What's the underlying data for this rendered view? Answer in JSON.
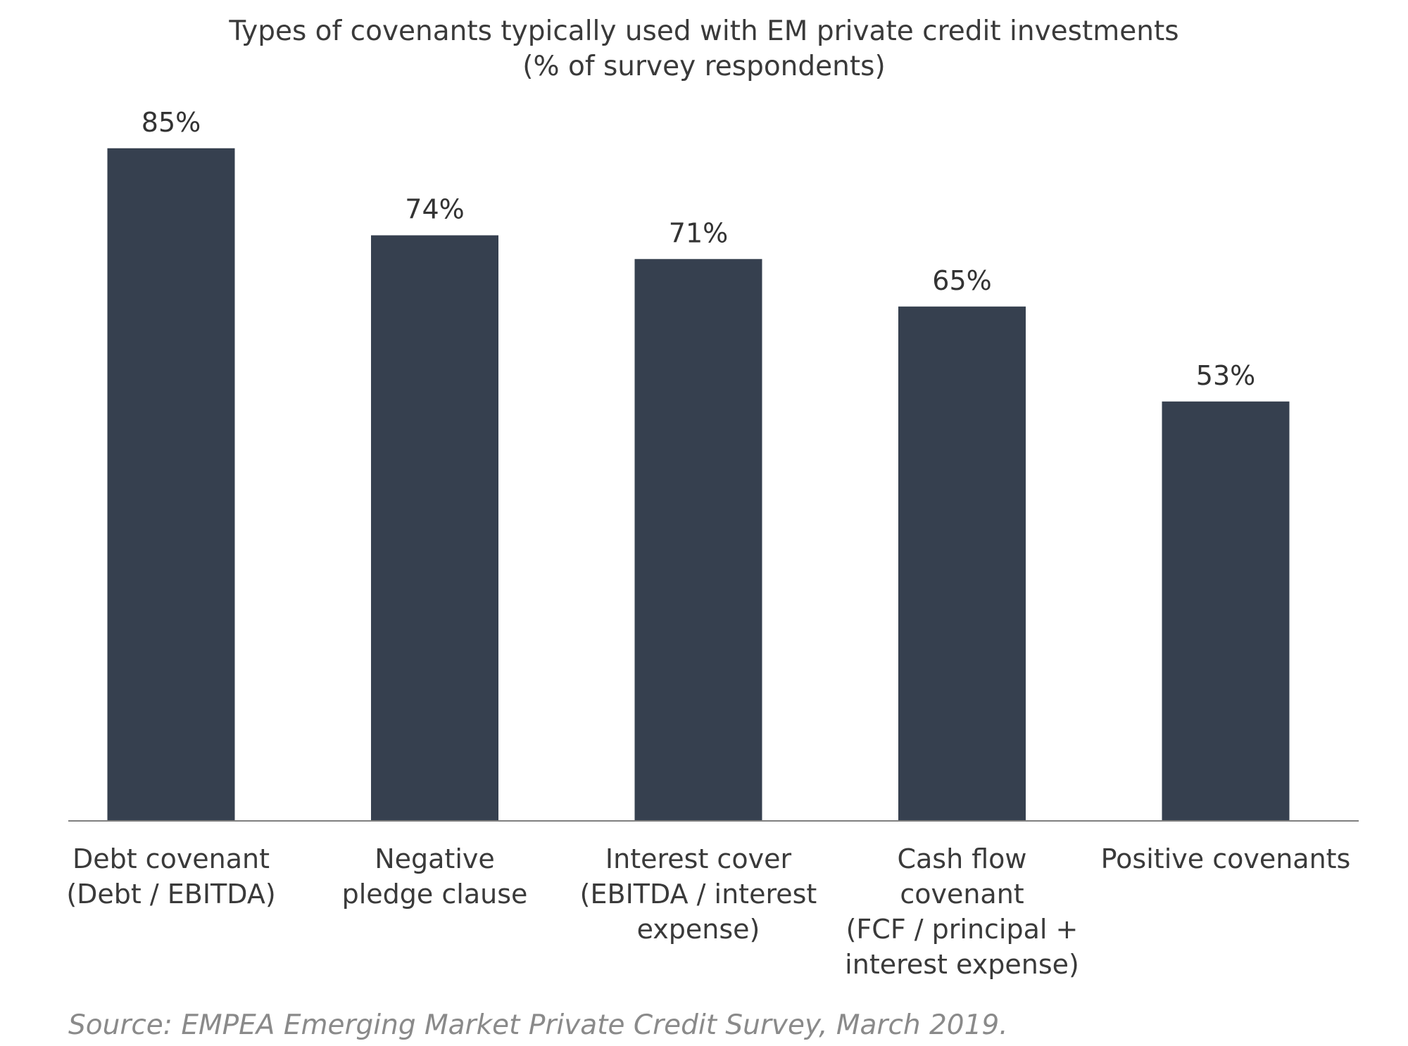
{
  "chart_data": {
    "type": "bar",
    "title": "Types of covenants typically used with EM private credit investments",
    "subtitle": "(% of survey respondents)",
    "categories": [
      [
        "Debt covenant",
        "(Debt / EBITDA)"
      ],
      [
        "Negative",
        "pledge clause"
      ],
      [
        "Interest cover",
        "(EBITDA / interest",
        "expense)"
      ],
      [
        "Cash flow",
        "covenant",
        "(FCF / principal +",
        "interest expense)"
      ],
      [
        "Positive covenants"
      ]
    ],
    "values": [
      85,
      74,
      71,
      65,
      53
    ],
    "value_labels": [
      "85%",
      "74%",
      "71%",
      "65%",
      "53%"
    ],
    "ylim": [
      0,
      100
    ],
    "xlabel": "",
    "ylabel": "",
    "grid": false,
    "bar_color": "#36404f",
    "baseline_color": "#7f7f7f"
  },
  "source": "Source: EMPEA Emerging Market Private Credit Survey, March 2019."
}
